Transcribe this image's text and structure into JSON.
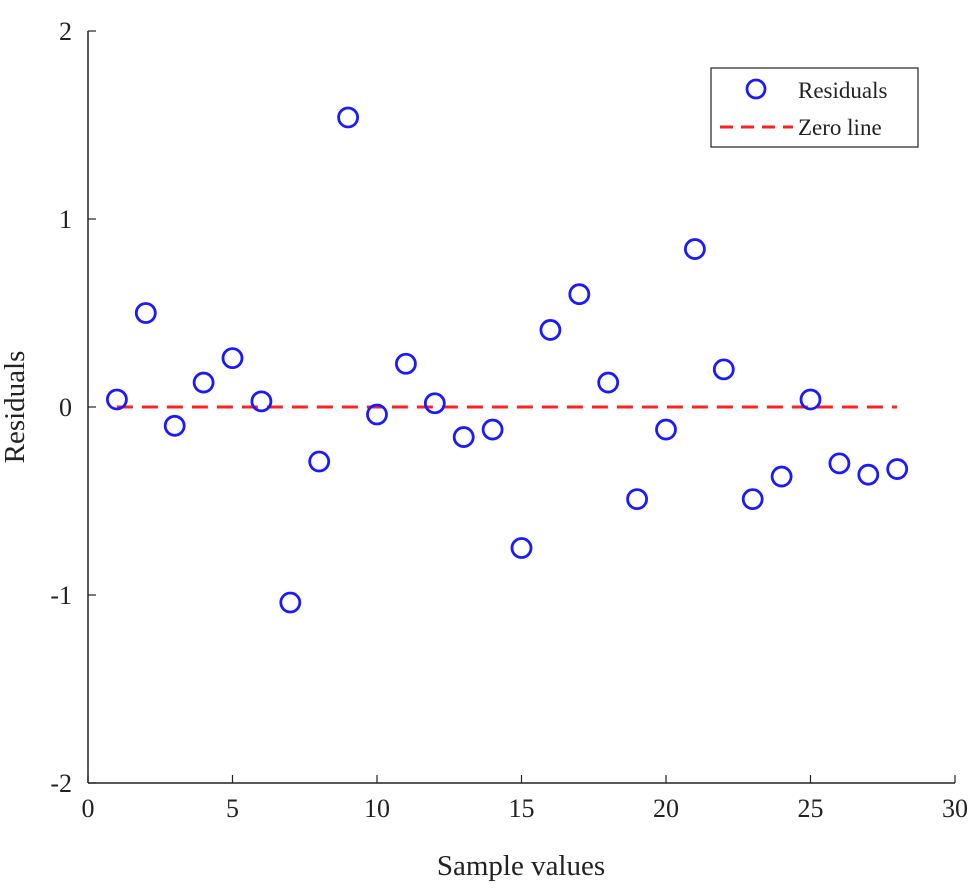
{
  "chart_data": {
    "type": "scatter",
    "xlabel": "Sample values",
    "ylabel": "Residuals",
    "xlim": [
      0,
      30
    ],
    "ylim": [
      -2,
      2
    ],
    "xticks": [
      0,
      5,
      10,
      15,
      20,
      25,
      30
    ],
    "yticks": [
      -2,
      -1,
      0,
      1,
      2
    ],
    "xtick_labels": [
      "0",
      "5",
      "10",
      "15",
      "20",
      "25",
      "30"
    ],
    "ytick_labels": [
      "-2",
      "-1",
      "0",
      "1",
      "2"
    ],
    "grid": false,
    "legend_position": "top-right",
    "series": [
      {
        "name": "Residuals",
        "marker": "open-circle",
        "color": "#1a1aff",
        "x": [
          1,
          2,
          3,
          4,
          5,
          6,
          7,
          8,
          9,
          10,
          11,
          12,
          13,
          14,
          15,
          16,
          17,
          18,
          19,
          20,
          21,
          22,
          23,
          24,
          25,
          26,
          27,
          28
        ],
        "y": [
          0.04,
          0.5,
          -0.1,
          0.13,
          0.26,
          0.03,
          -1.04,
          -0.29,
          1.54,
          -0.04,
          0.23,
          0.02,
          -0.16,
          -0.12,
          -0.75,
          0.41,
          0.6,
          0.13,
          -0.49,
          -0.12,
          0.84,
          0.2,
          -0.49,
          -0.37,
          0.04,
          -0.3,
          -0.36,
          -0.33
        ]
      },
      {
        "name": "Zero line",
        "style": "dashed-line",
        "color": "#ff2020",
        "x": [
          1,
          28
        ],
        "y": [
          0,
          0
        ]
      }
    ]
  }
}
